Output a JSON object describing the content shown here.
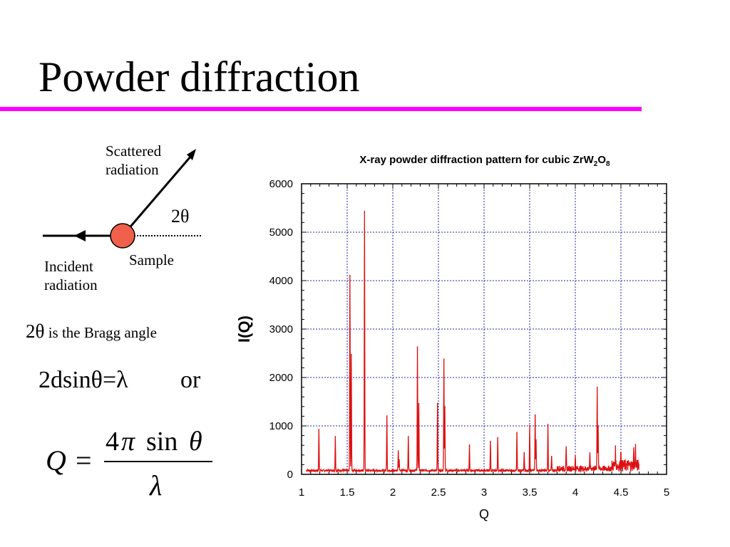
{
  "slide": {
    "title": "Powder diffraction"
  },
  "diagram": {
    "scattered_label": "Scattered radiation",
    "scattered_line1": "Scattered",
    "scattered_line2": "radiation",
    "angle_label": "2θ",
    "sample_label": "Sample",
    "incident_line1": "Incident",
    "incident_line2": "radiation",
    "sample_color": "#f0604a"
  },
  "text": {
    "bragg_symbol": "2θ",
    "bragg_rest": " is the Bragg angle",
    "bragg_equation": "2dsinθ=λ",
    "or_label": "or",
    "q_formula": {
      "lhs": "Q",
      "equals": "=",
      "numerator_coeff": "4",
      "numerator_pi": "π",
      "numerator_sin": "sin",
      "numerator_theta": "θ",
      "denominator": "λ"
    }
  },
  "colors": {
    "title_rule": "#ff00ff",
    "series": "#dd1111",
    "grid": "#2222aa"
  },
  "chart_data": {
    "type": "line",
    "title": "X-ray powder diffraction pattern for cubic ZrW",
    "title_sub1": "2",
    "title_mid": "O",
    "title_sub2": "8",
    "xlabel": "Q",
    "ylabel": "I(Q)",
    "xlim": [
      1,
      5
    ],
    "ylim": [
      0,
      6000
    ],
    "xticks": [
      "1",
      "1.5",
      "2",
      "2.5",
      "3",
      "3.5",
      "4",
      "4.5",
      "5"
    ],
    "yticks": [
      "0",
      "1000",
      "2000",
      "3000",
      "4000",
      "5000",
      "6000"
    ],
    "grid": true,
    "x_range_data": [
      1.05,
      4.7
    ],
    "baseline": 60,
    "peaks": [
      {
        "q": 1.19,
        "i": 870
      },
      {
        "q": 1.37,
        "i": 700
      },
      {
        "q": 1.53,
        "i": 4050
      },
      {
        "q": 1.545,
        "i": 2400
      },
      {
        "q": 1.69,
        "i": 5350
      },
      {
        "q": 1.935,
        "i": 1130
      },
      {
        "q": 2.06,
        "i": 420
      },
      {
        "q": 2.07,
        "i": 220
      },
      {
        "q": 2.17,
        "i": 720
      },
      {
        "q": 2.27,
        "i": 2560
      },
      {
        "q": 2.285,
        "i": 1400
      },
      {
        "q": 2.49,
        "i": 1400
      },
      {
        "q": 2.56,
        "i": 2300
      },
      {
        "q": 2.57,
        "i": 1320
      },
      {
        "q": 2.84,
        "i": 520
      },
      {
        "q": 3.07,
        "i": 600
      },
      {
        "q": 3.15,
        "i": 700
      },
      {
        "q": 3.36,
        "i": 780
      },
      {
        "q": 3.44,
        "i": 380
      },
      {
        "q": 3.5,
        "i": 950
      },
      {
        "q": 3.56,
        "i": 1150
      },
      {
        "q": 3.57,
        "i": 650
      },
      {
        "q": 3.7,
        "i": 950
      },
      {
        "q": 3.74,
        "i": 300
      },
      {
        "q": 3.9,
        "i": 400
      },
      {
        "q": 4.0,
        "i": 250
      },
      {
        "q": 4.16,
        "i": 300
      },
      {
        "q": 4.24,
        "i": 1680
      },
      {
        "q": 4.25,
        "i": 900
      },
      {
        "q": 4.44,
        "i": 300
      },
      {
        "q": 4.5,
        "i": 350
      },
      {
        "q": 4.64,
        "i": 300
      },
      {
        "q": 4.66,
        "i": 380
      }
    ]
  }
}
